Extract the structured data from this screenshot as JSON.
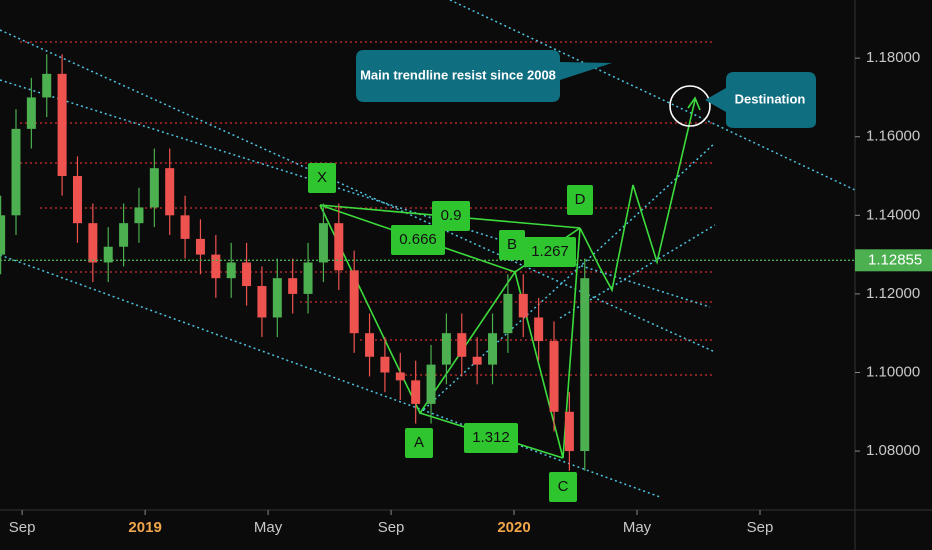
{
  "chart_data": {
    "type": "candlestick",
    "x": [
      -0.7,
      -0.2,
      0.3,
      0.8,
      1.3,
      1.8,
      2.3,
      2.8,
      3.3,
      3.8,
      4.3,
      4.8,
      5.3,
      5.8,
      6.3,
      6.8,
      7.3,
      7.8,
      8.3,
      8.8,
      9.3,
      9.8,
      10.3,
      10.8,
      11.3,
      11.8,
      12.3,
      12.8,
      13.3,
      13.8,
      14.3,
      14.8,
      15.3,
      15.8,
      16.3,
      16.8,
      17.3,
      17.8,
      18.3
    ],
    "open": [
      1.13,
      1.14,
      1.162,
      1.17,
      1.176,
      1.15,
      1.138,
      1.128,
      1.132,
      1.138,
      1.142,
      1.152,
      1.14,
      1.134,
      1.13,
      1.124,
      1.128,
      1.122,
      1.114,
      1.124,
      1.12,
      1.128,
      1.138,
      1.126,
      1.11,
      1.104,
      1.1,
      1.098,
      1.092,
      1.102,
      1.11,
      1.104,
      1.102,
      1.11,
      1.12,
      1.114,
      1.108,
      1.09,
      1.08
    ],
    "high": [
      1.145,
      1.167,
      1.175,
      1.181,
      1.181,
      1.155,
      1.143,
      1.137,
      1.143,
      1.147,
      1.157,
      1.157,
      1.145,
      1.139,
      1.135,
      1.133,
      1.133,
      1.127,
      1.129,
      1.129,
      1.133,
      1.143,
      1.143,
      1.131,
      1.115,
      1.109,
      1.105,
      1.103,
      1.107,
      1.115,
      1.115,
      1.109,
      1.115,
      1.125,
      1.125,
      1.119,
      1.113,
      1.095,
      1.129
    ],
    "low": [
      1.125,
      1.135,
      1.157,
      1.165,
      1.145,
      1.133,
      1.123,
      1.123,
      1.127,
      1.133,
      1.137,
      1.135,
      1.129,
      1.125,
      1.119,
      1.119,
      1.117,
      1.109,
      1.109,
      1.115,
      1.115,
      1.123,
      1.121,
      1.105,
      1.099,
      1.095,
      1.093,
      1.087,
      1.087,
      1.097,
      1.099,
      1.097,
      1.097,
      1.105,
      1.109,
      1.103,
      1.085,
      1.075,
      1.075
    ],
    "close": [
      1.14,
      1.162,
      1.17,
      1.176,
      1.15,
      1.138,
      1.128,
      1.132,
      1.138,
      1.142,
      1.152,
      1.14,
      1.134,
      1.13,
      1.124,
      1.128,
      1.122,
      1.114,
      1.124,
      1.12,
      1.128,
      1.138,
      1.126,
      1.11,
      1.104,
      1.1,
      1.098,
      1.092,
      1.102,
      1.11,
      1.104,
      1.102,
      1.11,
      1.12,
      1.114,
      1.108,
      1.09,
      1.08,
      1.124
    ],
    "up_color": "#4caf50",
    "down_color": "#ef5350",
    "xlim": [
      -0.72,
      27.09
    ],
    "xticks": [
      {
        "value": 0,
        "label": "Sep"
      },
      {
        "value": 4,
        "label": "2019"
      },
      {
        "value": 8,
        "label": "May"
      },
      {
        "value": 12,
        "label": "Sep"
      },
      {
        "value": 16,
        "label": "2020"
      },
      {
        "value": 20,
        "label": "May"
      },
      {
        "value": 24,
        "label": "Sep"
      }
    ],
    "ylim": [
      1.065,
      1.1948
    ],
    "yticks": [
      {
        "value": 1.08,
        "label": "1.08000"
      },
      {
        "value": 1.1,
        "label": "1.10000"
      },
      {
        "value": 1.12,
        "label": "1.12000"
      },
      {
        "value": 1.14,
        "label": "1.14000"
      },
      {
        "value": 1.16,
        "label": "1.16000"
      },
      {
        "value": 1.18,
        "label": "1.18000"
      }
    ],
    "last_price": 1.12855,
    "annotations": {
      "points": [
        "X",
        "A",
        "B",
        "C",
        "D"
      ],
      "ratios": [
        "0.9",
        "0.666",
        "1.267",
        "1.312"
      ],
      "callouts": [
        "Main trendline resist since 2008",
        "Destination"
      ]
    }
  }
}
